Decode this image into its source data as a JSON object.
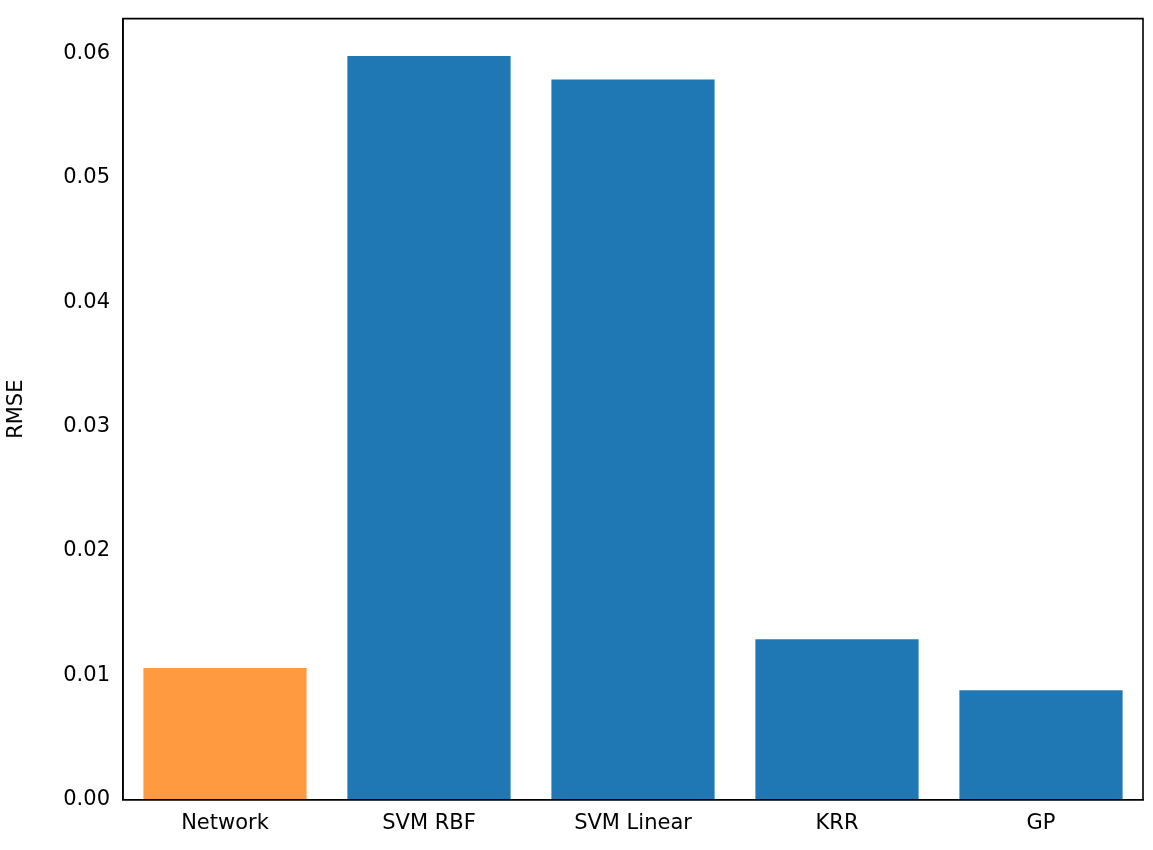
{
  "chart_data": {
    "type": "bar",
    "ylabel": "RMSE",
    "categories": [
      "Network",
      "SVM RBF",
      "SVM Linear",
      "KRR",
      "GP"
    ],
    "values": [
      0.0106,
      0.0598,
      0.0579,
      0.0129,
      0.0088
    ],
    "colors": [
      "#ff9a40",
      "#1f77b4",
      "#1f77b4",
      "#1f77b4",
      "#1f77b4"
    ],
    "ylim": [
      0,
      0.0628
    ],
    "yticks": [
      {
        "value": 0,
        "label": "0.00"
      },
      {
        "value": 0.01,
        "label": "0.01"
      },
      {
        "value": 0.02,
        "label": "0.02"
      },
      {
        "value": 0.03,
        "label": "0.03"
      },
      {
        "value": 0.04,
        "label": "0.04"
      },
      {
        "value": 0.05,
        "label": "0.05"
      },
      {
        "value": 0.06,
        "label": "0.06"
      }
    ],
    "grid": false,
    "legend": false
  }
}
